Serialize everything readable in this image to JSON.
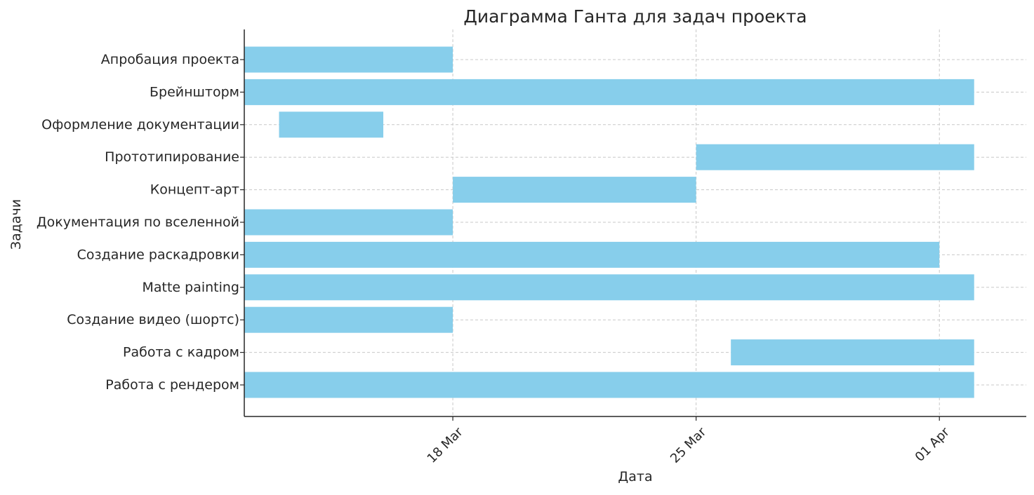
{
  "chart_data": {
    "type": "gantt",
    "title": "Диаграмма Ганта для задач проекта",
    "xlabel": "Дата",
    "ylabel": "Задачи",
    "x_ticks": [
      {
        "label": "18 Mar",
        "date": "2024-03-18"
      },
      {
        "label": "25 Mar",
        "date": "2024-03-25"
      },
      {
        "label": "01 Apr",
        "date": "2024-04-01"
      }
    ],
    "xlim": [
      "2024-03-12",
      "2024-04-03.5"
    ],
    "grid": true,
    "bar_color": "#87CEEB",
    "tasks": [
      {
        "name": "Апробация проекта",
        "start": "2024-03-12",
        "end": "2024-03-18"
      },
      {
        "name": "Брейншторм",
        "start": "2024-03-12",
        "end": "2024-04-02"
      },
      {
        "name": "Оформление документации",
        "start": "2024-03-13",
        "end": "2024-03-16"
      },
      {
        "name": "Прототипирование",
        "start": "2024-03-25",
        "end": "2024-04-02"
      },
      {
        "name": "Концепт-арт",
        "start": "2024-03-18",
        "end": "2024-03-25"
      },
      {
        "name": "Документация по вселенной",
        "start": "2024-03-12",
        "end": "2024-03-18"
      },
      {
        "name": "Создание раскадровки",
        "start": "2024-03-12",
        "end": "2024-04-01"
      },
      {
        "name": "Matte painting",
        "start": "2024-03-12",
        "end": "2024-04-02"
      },
      {
        "name": "Создание видео (шортс)",
        "start": "2024-03-12",
        "end": "2024-03-18"
      },
      {
        "name": "Работа с кадром",
        "start": "2024-03-26",
        "end": "2024-04-02"
      },
      {
        "name": "Работа с рендером",
        "start": "2024-03-12",
        "end": "2024-04-02"
      }
    ]
  }
}
